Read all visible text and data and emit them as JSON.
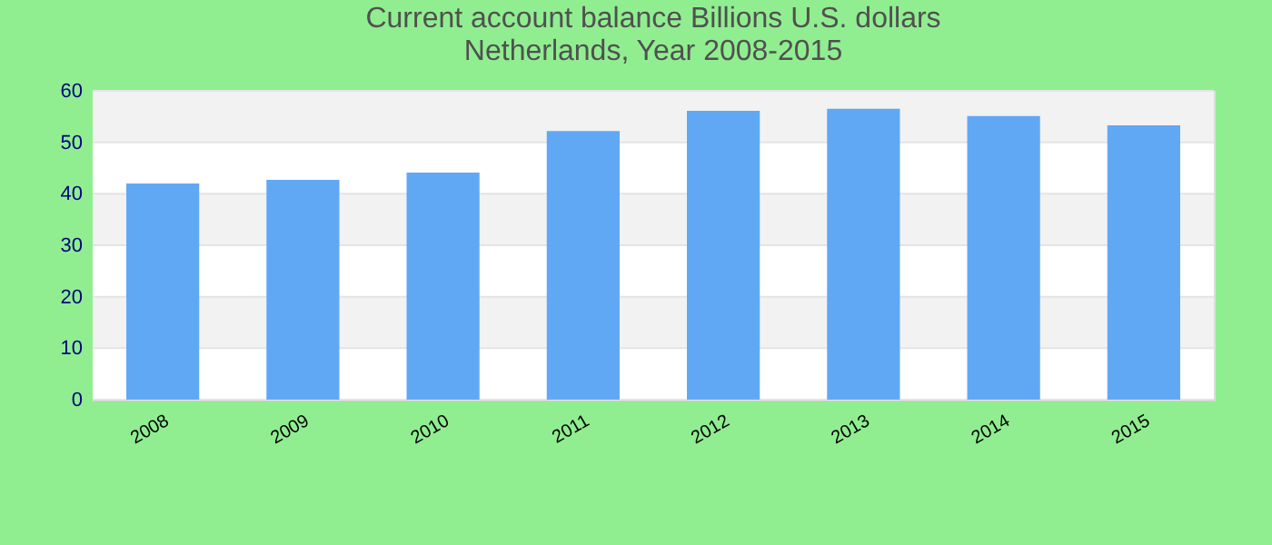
{
  "chart_data": {
    "type": "bar",
    "title": [
      "Current account balance Billions U.S. dollars",
      "Netherlands, Year 2008-2015"
    ],
    "categories": [
      "2008",
      "2009",
      "2010",
      "2011",
      "2012",
      "2013",
      "2014",
      "2015"
    ],
    "values": [
      42.0,
      42.7,
      44.1,
      52.2,
      56.1,
      56.5,
      55.1,
      53.3
    ],
    "color": "#60a8f4",
    "ylim": [
      0,
      60
    ],
    "yticks": [
      0,
      10,
      20,
      30,
      40,
      50,
      60
    ],
    "grid": "y"
  }
}
